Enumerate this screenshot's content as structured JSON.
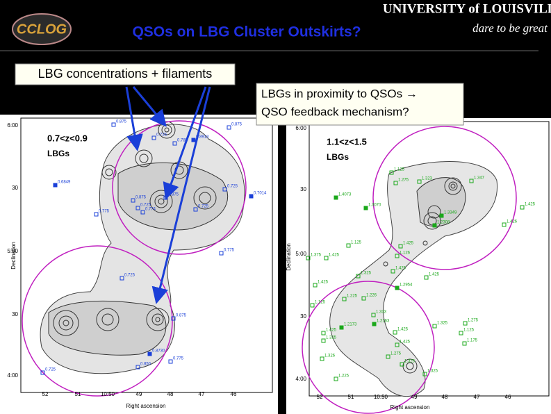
{
  "header": {
    "logo": "CCLOG",
    "university": "UNIVERSITY of LOUISVILLE",
    "motto": "dare to be great",
    "title": "QSOs on LBG Cluster Outskirts?"
  },
  "callouts": {
    "left": "LBG concentrations + filaments",
    "right": [
      "LBGs in proximity to QSOs →",
      "QSO feedback mechanism?"
    ]
  },
  "panels": [
    {
      "range": "0.7<z<0.9",
      "sample": "LBGs",
      "ylabel": "Declination",
      "xlabel": "Right ascension",
      "yticks": [
        "6:00",
        "30",
        "5:00",
        "30",
        "4:00"
      ],
      "xticks": [
        "52",
        "51",
        "10:50",
        "49",
        "48",
        "47",
        "46"
      ],
      "points": [
        "0.875",
        "0.875",
        "0.726",
        "0.785",
        "0.8913",
        "0.6849",
        "0.875",
        "0.875",
        "0.725",
        "0.725",
        "0.725",
        "0.7014",
        "0.775",
        "0.774",
        "0.775",
        "0.725",
        "0.875",
        "0.8730",
        "0.775",
        "0.850",
        "0.725"
      ]
    },
    {
      "range": "1.1<z<1.5",
      "sample": "LBGs",
      "ylabel": "Declination",
      "xlabel": "Right ascension",
      "yticks": [
        "6:00",
        "30",
        "5:00",
        "30",
        "4:00"
      ],
      "xticks": [
        "52",
        "51",
        "10:50",
        "49",
        "48",
        "47",
        "46"
      ],
      "points": [
        "1.125",
        "1.275",
        "1.323",
        "1.347",
        "1.4073",
        "1.3070",
        "1.425",
        "1.426",
        "1.3349",
        "1.2308",
        "1.125",
        "1.425",
        "1.375",
        "1.425",
        "1.126",
        "1.325",
        "1.425",
        "1.425",
        "1.2954",
        "1.425",
        "1.225",
        "1.226",
        "1.125",
        "1.333",
        "1.2173",
        "1.2163",
        "1.325",
        "1.275",
        "1.125",
        "1.425",
        "1.325",
        "1.425",
        "1.175",
        "1.425",
        "1.275",
        "1.326",
        "1.325",
        "1.225",
        "1.325"
      ]
    }
  ]
}
